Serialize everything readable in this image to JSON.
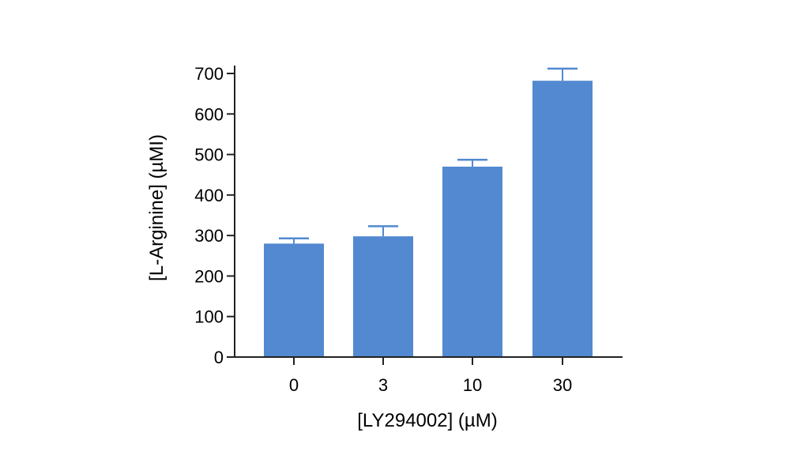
{
  "chart_data": {
    "type": "bar",
    "categories": [
      "0",
      "3",
      "10",
      "30"
    ],
    "values": [
      280,
      298,
      470,
      682
    ],
    "errors": [
      13,
      25,
      17,
      30
    ],
    "xlabel": "[LY294002] (µM)",
    "ylabel": "[L-Arginine] (µMI)",
    "ylim": [
      0,
      700
    ],
    "yticks": [
      "0",
      "100",
      "200",
      "300",
      "400",
      "500",
      "600",
      "700"
    ],
    "grid": false,
    "legend": "none",
    "bar_color": "#5289d1",
    "axis_color": "#222222"
  }
}
